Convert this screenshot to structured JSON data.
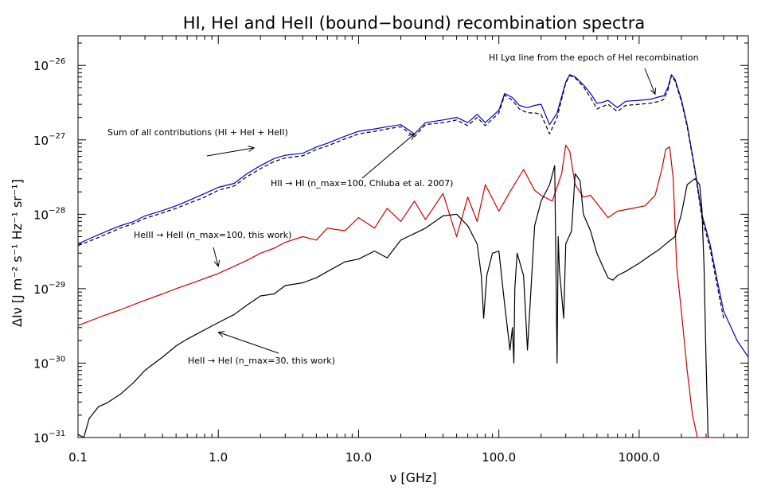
{
  "chart_data": {
    "type": "line",
    "title": "HI, HeI and HeII (bound−bound) recombination spectra",
    "xlabel": "ν [GHz]",
    "ylabel": "ΔIν [J m⁻² s⁻¹ Hz⁻¹ sr⁻¹]",
    "xscale": "log",
    "yscale": "log",
    "xlim": [
      0.1,
      6000
    ],
    "ylim": [
      1e-31,
      2.5e-26
    ],
    "x_tick_labels": [
      "0.1",
      "1.0",
      "10.0",
      "100.0",
      "1000.0"
    ],
    "y_tick_labels": [
      {
        "base": "10",
        "exp": "−31"
      },
      {
        "base": "10",
        "exp": "−30"
      },
      {
        "base": "10",
        "exp": "−29"
      },
      {
        "base": "10",
        "exp": "−28"
      },
      {
        "base": "10",
        "exp": "−27"
      },
      {
        "base": "10",
        "exp": "−26"
      }
    ],
    "colors": {
      "total": "#0000cc",
      "hi": "#000000",
      "heii_to_heii": "#cc0000",
      "heii_to_hei": "#000000"
    },
    "series": [
      {
        "key": "total",
        "style": "solid",
        "x": [
          0.1,
          0.13,
          0.17,
          0.2,
          0.25,
          0.3,
          0.4,
          0.5,
          0.6,
          0.8,
          1,
          1.3,
          1.6,
          2,
          2.5,
          3,
          4,
          5,
          6,
          8,
          10,
          13,
          16,
          20,
          25,
          30,
          40,
          50,
          60,
          70,
          80,
          100,
          110,
          125,
          140,
          160,
          180,
          200,
          230,
          260,
          300,
          320,
          350,
          400,
          450,
          500,
          550,
          600,
          700,
          800,
          1000,
          1200,
          1400,
          1500,
          1600,
          1700,
          1800,
          2000,
          2200,
          2500,
          2800,
          3200,
          3600,
          4000,
          5000,
          6000
        ],
        "y": [
          4e-29,
          5e-29,
          6.2e-29,
          7e-29,
          8e-29,
          9.5e-29,
          1.12e-28,
          1.3e-28,
          1.5e-28,
          1.9e-28,
          2.3e-28,
          2.6e-28,
          3.5e-28,
          4.5e-28,
          5.6e-28,
          6.2e-28,
          6.6e-28,
          8e-28,
          9e-28,
          1.12e-27,
          1.3e-27,
          1.4e-27,
          1.5e-27,
          1.6e-27,
          1.2e-27,
          1.7e-27,
          1.85e-27,
          2e-27,
          1.7e-27,
          2.2e-27,
          1.7e-27,
          2.5e-27,
          4.2e-27,
          3.7e-27,
          2.9e-27,
          2.7e-27,
          2.9e-27,
          3e-27,
          1.6e-27,
          2.3e-27,
          6e-27,
          7.5e-27,
          7e-27,
          5.5e-27,
          4.2e-27,
          3.1e-27,
          3.2e-27,
          3.4e-27,
          2.7e-27,
          3.3e-27,
          3.4e-27,
          3.5e-27,
          3.8e-27,
          3.9e-27,
          5e-27,
          7.5e-27,
          6.5e-27,
          3.5e-27,
          1.6e-27,
          4e-28,
          1e-28,
          4e-29,
          1.3e-29,
          5e-30,
          2e-30,
          1.2e-30
        ]
      },
      {
        "key": "hi",
        "style": "dashed",
        "label": "HII → HI (n_max=100, Chluba et al. 2007)",
        "x": [
          0.1,
          0.13,
          0.17,
          0.2,
          0.25,
          0.3,
          0.4,
          0.5,
          0.6,
          0.8,
          1,
          1.3,
          1.6,
          2,
          2.5,
          3,
          4,
          5,
          6,
          8,
          10,
          13,
          16,
          20,
          25,
          30,
          40,
          50,
          60,
          70,
          80,
          100,
          110,
          125,
          140,
          160,
          180,
          200,
          230,
          260,
          300,
          320,
          350,
          400,
          450,
          500,
          550,
          600,
          700,
          800,
          1000,
          1200,
          1400,
          1500,
          1600,
          1700,
          1800,
          2000,
          2200,
          2500,
          2800,
          3200,
          3600,
          4000
        ],
        "y": [
          3.8e-29,
          4.6e-29,
          5.7e-29,
          6.5e-29,
          7.5e-29,
          8.8e-29,
          1.04e-28,
          1.2e-28,
          1.38e-28,
          1.7e-28,
          2.1e-28,
          2.4e-28,
          3.2e-28,
          4.1e-28,
          5.1e-28,
          5.7e-28,
          6.1e-28,
          7.4e-28,
          8.3e-28,
          1.03e-27,
          1.2e-27,
          1.3e-27,
          1.4e-27,
          1.5e-27,
          1.1e-27,
          1.6e-27,
          1.7e-27,
          1.85e-27,
          1.55e-27,
          2e-27,
          1.55e-27,
          2.3e-27,
          4e-27,
          3.4e-27,
          2.6e-27,
          2.3e-27,
          2.3e-27,
          2.2e-27,
          1.2e-27,
          2e-27,
          5.8e-27,
          7.3e-27,
          6.8e-27,
          5.2e-27,
          3.7e-27,
          2.6e-27,
          2.8e-27,
          3e-27,
          2.4e-27,
          2.9e-27,
          3e-27,
          3.1e-27,
          3.3e-27,
          3.5e-27,
          4.6e-27,
          7.3e-27,
          6.2e-27,
          3.3e-27,
          1.5e-27,
          3.8e-28,
          9e-29,
          3.5e-29,
          1.1e-29,
          4e-30
        ]
      },
      {
        "key": "heii_to_heii",
        "style": "solid",
        "label": "HeIII → HeII (n_max=100, this work)",
        "x": [
          0.1,
          0.15,
          0.2,
          0.3,
          0.4,
          0.5,
          0.7,
          1,
          1.3,
          1.6,
          2,
          2.5,
          3,
          4,
          5,
          6,
          8,
          10,
          13,
          16,
          20,
          25,
          30,
          40,
          50,
          60,
          70,
          80,
          100,
          120,
          150,
          180,
          200,
          240,
          280,
          300,
          320,
          350,
          400,
          450,
          500,
          600,
          700,
          900,
          1100,
          1300,
          1450,
          1550,
          1650,
          1750,
          1850,
          2000,
          2200,
          2400,
          2600,
          2800,
          3000,
          3200,
          3400
        ],
        "y": [
          3.2e-30,
          4.3e-30,
          5.2e-30,
          7e-30,
          8.5e-30,
          1e-29,
          1.25e-29,
          1.6e-29,
          2e-29,
          2.4e-29,
          3e-29,
          3.5e-29,
          4.2e-29,
          5e-29,
          4.5e-29,
          6.5e-29,
          6e-29,
          9e-29,
          6.5e-29,
          1.2e-28,
          8e-29,
          1.5e-28,
          8.5e-29,
          1.9e-28,
          5e-29,
          1.7e-28,
          8e-29,
          2.5e-28,
          1.1e-28,
          2e-28,
          4e-28,
          2.1e-28,
          1.8e-28,
          1.5e-28,
          3.5e-28,
          8.5e-28,
          7e-28,
          2.5e-28,
          1.7e-28,
          1.8e-28,
          1.4e-28,
          9e-29,
          1.1e-28,
          1.2e-28,
          1.3e-28,
          1.8e-28,
          4e-28,
          7.5e-28,
          8e-28,
          3e-28,
          2e-29,
          5e-30,
          8e-31,
          2e-31,
          1e-31,
          1e-31,
          1e-31,
          1e-31,
          1e-31
        ]
      },
      {
        "key": "heii_to_hei",
        "style": "solid",
        "label": "HeII → HeI (n_max=30, this work)",
        "x": [
          0.1,
          0.11,
          0.12,
          0.14,
          0.16,
          0.2,
          0.25,
          0.3,
          0.4,
          0.5,
          0.6,
          0.8,
          1,
          1.3,
          1.6,
          2,
          2.5,
          3,
          4,
          5,
          6,
          8,
          10,
          13,
          16,
          20,
          25,
          30,
          40,
          50,
          60,
          70,
          75,
          78,
          82,
          90,
          100,
          110,
          120,
          125,
          128,
          130,
          135,
          150,
          160,
          180,
          200,
          230,
          250,
          260,
          265,
          270,
          290,
          300,
          330,
          350,
          380,
          400,
          450,
          500,
          550,
          600,
          650,
          700,
          800,
          1000,
          1200,
          1400,
          1600,
          1800,
          2000,
          2200,
          2500,
          2700,
          2800,
          2900,
          3000,
          3100
        ],
        "y": [
          1.1e-31,
          1e-31,
          1.8e-31,
          2.6e-31,
          2.9e-31,
          3.8e-31,
          5.5e-31,
          8e-31,
          1.2e-30,
          1.7e-30,
          2.1e-30,
          2.8e-30,
          3.5e-30,
          4.5e-30,
          6e-30,
          8e-30,
          8.5e-30,
          1.1e-29,
          1.2e-29,
          1.4e-29,
          1.7e-29,
          2.3e-29,
          2.5e-29,
          3.2e-29,
          2.6e-29,
          4.5e-29,
          5.5e-29,
          6.5e-29,
          9.5e-29,
          1e-28,
          7e-29,
          4e-29,
          1.5e-29,
          4e-30,
          1.5e-29,
          3e-29,
          3.2e-29,
          6e-30,
          1.5e-30,
          3e-30,
          1e-30,
          1e-29,
          3e-29,
          1.5e-29,
          1.5e-30,
          7e-29,
          1.5e-28,
          2.5e-28,
          4.5e-28,
          1e-30,
          5e-29,
          1.8e-29,
          4e-30,
          4e-29,
          6e-29,
          3.5e-28,
          2.8e-28,
          1e-28,
          6e-29,
          3e-29,
          2e-29,
          1.4e-29,
          1.3e-29,
          1.5e-29,
          1.7e-29,
          2.2e-29,
          2.8e-29,
          3.4e-29,
          4.2e-29,
          5e-29,
          1e-28,
          2.5e-28,
          3e-28,
          2.5e-28,
          1.2e-28,
          2e-29,
          1e-30,
          1e-31
        ]
      }
    ],
    "annotations": [
      {
        "key": "lya",
        "text": "HI Lyα line from the epoch of HeI recombination",
        "at": [
          1300,
          4.1e-27
        ]
      },
      {
        "key": "sum",
        "text": "Sum of all contributions (HI + HeI + HeII)",
        "at": [
          1.8,
          7.8e-28
        ]
      },
      {
        "key": "hi",
        "text": "HII → HI (n_max=100, Chluba et al. 2007)",
        "at": [
          25,
          1.2e-27
        ]
      },
      {
        "key": "heiii",
        "text": "HeIII → HeII (n_max=100, this work)",
        "at": [
          1.0,
          2e-29
        ]
      },
      {
        "key": "heii",
        "text": "HeII → HeI (n_max=30, this work)",
        "at": [
          1.0,
          2.6e-30
        ]
      }
    ]
  }
}
